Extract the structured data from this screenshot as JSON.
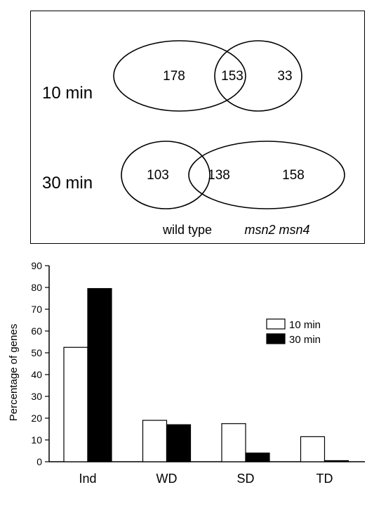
{
  "venn": {
    "rows": [
      {
        "label": "10 min",
        "wild_type_only": "178",
        "overlap": "153",
        "msn2_msn4_only": "33"
      },
      {
        "label": "30 min",
        "wild_type_only": "103",
        "overlap": "138",
        "msn2_msn4_only": "158"
      }
    ],
    "set_labels": {
      "left": "wild type",
      "right": "msn2 msn4"
    }
  },
  "chart_data": {
    "type": "bar",
    "title": "",
    "xlabel": "",
    "ylabel": "Percentage of genes",
    "ylim": [
      0,
      90
    ],
    "yticks": [
      0,
      10,
      20,
      30,
      40,
      50,
      60,
      70,
      80,
      90
    ],
    "categories": [
      "Ind",
      "WD",
      "SD",
      "TD"
    ],
    "series": [
      {
        "name": "10 min",
        "values": [
          52.5,
          19,
          17.5,
          11.5
        ],
        "color": "#ffffff"
      },
      {
        "name": "30 min",
        "values": [
          79.5,
          17,
          4,
          0.5
        ],
        "color": "#000000"
      }
    ],
    "legend": "top-right",
    "grid": false
  }
}
